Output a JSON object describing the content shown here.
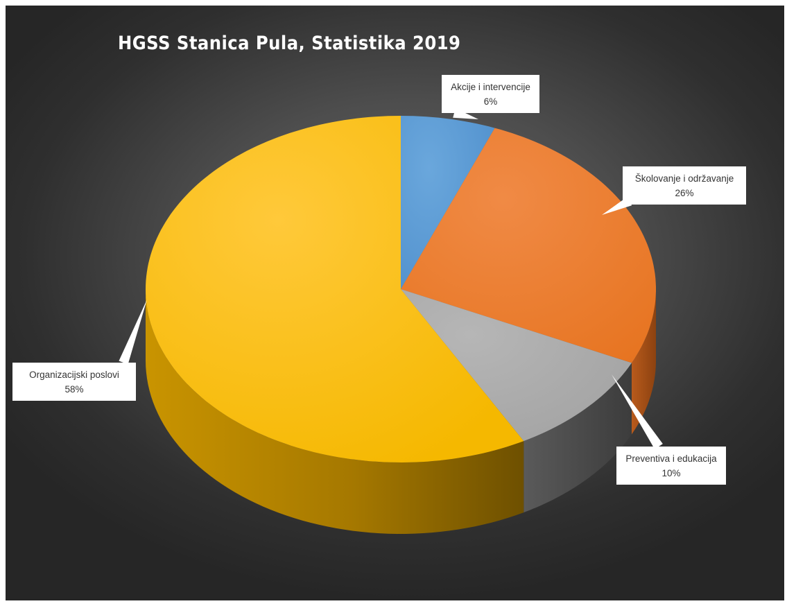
{
  "chart_data": {
    "type": "pie",
    "title": "HGSS Stanica Pula, Statistika 2019",
    "categories": [
      "Akcije i intervencije",
      "Školovanje i održavanje",
      "Preventiva i edukacija",
      "Organizacijski poslovi"
    ],
    "values": [
      6,
      26,
      10,
      58
    ],
    "unit": "%",
    "data_labels": [
      {
        "category": "Akcije i intervencije",
        "value": "6%"
      },
      {
        "category": "Školovanje i održavanje",
        "value": "26%"
      },
      {
        "category": "Preventiva i edukacija",
        "value": "10%"
      },
      {
        "category": "Organizacijski poslovi",
        "value": "58%"
      }
    ],
    "colors": [
      "#5b9bd5",
      "#ed7d31",
      "#a5a5a5",
      "#ffc000"
    ],
    "style": "3d-exploded-none",
    "legend": "none",
    "background": "#3a3a3a"
  }
}
